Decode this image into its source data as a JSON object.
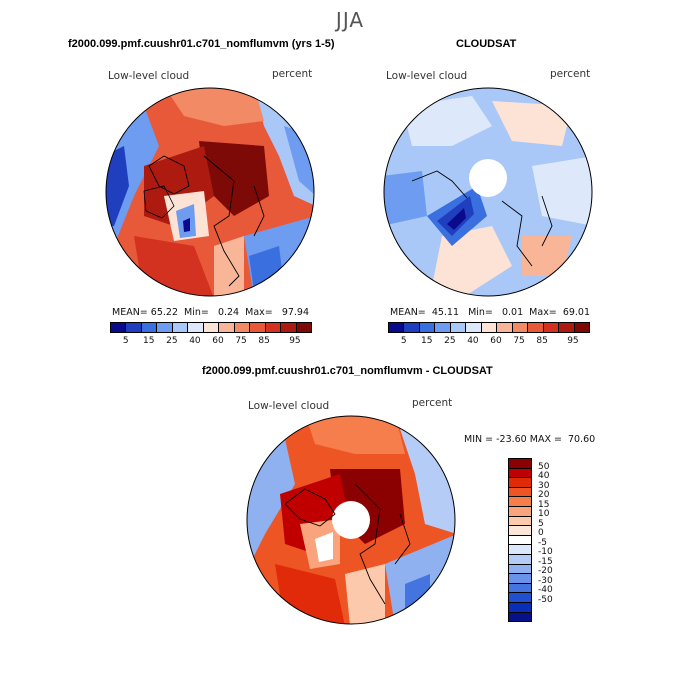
{
  "season": "JJA",
  "panels": {
    "model": {
      "title": "f2000.099.pmf.cuushr01.c701_nomflumvm (yrs 1-5)",
      "field": "Low-level cloud",
      "units": "percent",
      "stats": {
        "mean_label": "MEAN=",
        "mean": "65.22",
        "min_label": "Min=",
        "min": "0.24",
        "max_label": "Max=",
        "max": "97.94"
      }
    },
    "obs": {
      "title": "CLOUDSAT",
      "field": "Low-level cloud",
      "units": "percent",
      "stats": {
        "mean_label": "MEAN=",
        "mean": "45.11",
        "min_label": "Min=",
        "min": "0.01",
        "max_label": "Max=",
        "max": "69.01"
      }
    },
    "diff": {
      "title": "f2000.099.pmf.cuushr01.c701_nomflumvm - CLOUDSAT",
      "field": "Low-level cloud",
      "units": "percent",
      "minmax": "MIN = -23.60 MAX =  70.60"
    }
  },
  "abs_colorbar": {
    "colors": [
      "#0a0a8c",
      "#1f3fbf",
      "#3a6fe0",
      "#6d9cf0",
      "#a9c8f7",
      "#dde9fb",
      "#fde3d6",
      "#f9b598",
      "#f28a66",
      "#e8593a",
      "#d2321f",
      "#ad1a10",
      "#7d0a06"
    ],
    "labels": [
      "5",
      "15",
      "25",
      "40",
      "60",
      "75",
      "85",
      "95"
    ]
  },
  "diff_colorbar": {
    "colors": [
      "#8b0000",
      "#c00000",
      "#e02a0a",
      "#ee5524",
      "#f67d4c",
      "#f9a47c",
      "#fcc9ac",
      "#fde6d8",
      "#ffffff",
      "#dbe7fb",
      "#b5cdf6",
      "#8fb1f0",
      "#6a93e9",
      "#4474df",
      "#2050d0",
      "#0b2eb8",
      "#08108a"
    ],
    "labels": [
      "50",
      "40",
      "30",
      "20",
      "15",
      "10",
      "5",
      "0",
      "-5",
      "-10",
      "-15",
      "-20",
      "-30",
      "-40",
      "-50"
    ]
  }
}
